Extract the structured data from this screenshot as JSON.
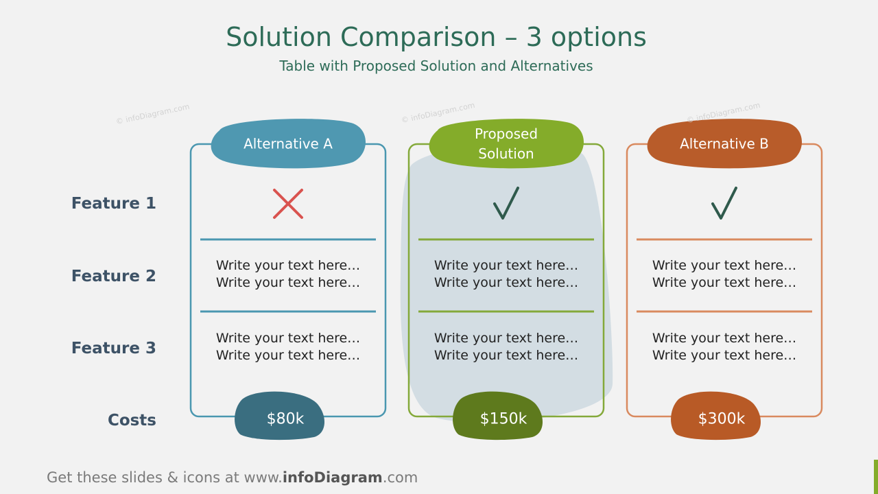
{
  "header": {
    "title": "Solution Comparison – 3 options",
    "subtitle": "Table with Proposed Solution and Alternatives"
  },
  "watermark": "© infoDiagram.com",
  "table": {
    "row_labels": [
      "Feature 1",
      "Feature 2",
      "Feature 3",
      "Costs"
    ],
    "columns": [
      {
        "name": "Alternative A",
        "rows": [
          [
            "Write your text here…",
            "Write your text here…"
          ],
          [
            "Write your text here…",
            "Write your text here…"
          ]
        ],
        "cost": "$80k"
      },
      {
        "name": "Proposed Solution",
        "rows": [
          [
            "Write your text here…",
            "Write your text here…"
          ],
          [
            "Write your text here…",
            "Write your text here…"
          ]
        ],
        "cost": "$150k"
      },
      {
        "name": "Alternative B",
        "rows": [
          [
            "Write your text here…",
            "Write your text here…"
          ],
          [
            "Write your text here…",
            "Write your text here…"
          ]
        ],
        "cost": "$300k"
      }
    ]
  },
  "footer": {
    "parts": [
      "Get these slides & icons at www.",
      "infoDiagram",
      ".com"
    ]
  }
}
